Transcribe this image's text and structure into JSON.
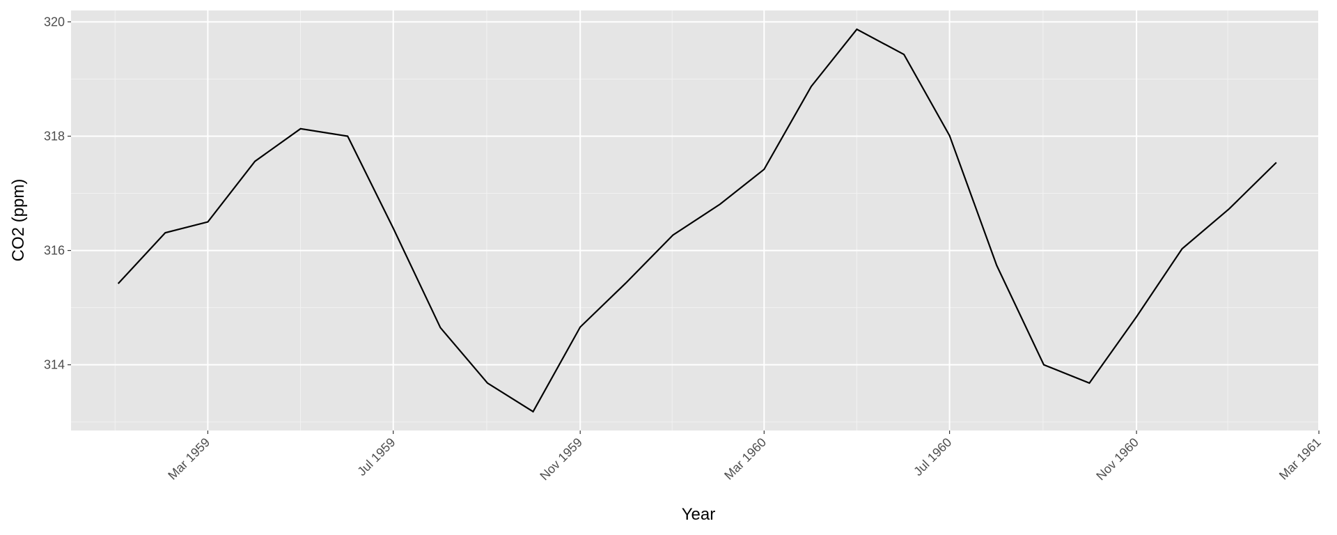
{
  "chart_data": {
    "type": "line",
    "x_label": "Year",
    "y_label": "CO2 (ppm)",
    "x": [
      "1959-01",
      "1959-02",
      "1959-03",
      "1959-04",
      "1959-05",
      "1959-06",
      "1959-07",
      "1959-08",
      "1959-09",
      "1959-10",
      "1959-11",
      "1959-12",
      "1960-01",
      "1960-02",
      "1960-03",
      "1960-04",
      "1960-05",
      "1960-06",
      "1960-07",
      "1960-08",
      "1960-09",
      "1960-10",
      "1960-11",
      "1960-12",
      "1961-01",
      "1961-02"
    ],
    "series": [
      {
        "color": "#000000",
        "values": [
          315.42,
          316.31,
          316.5,
          317.56,
          318.13,
          318.0,
          316.39,
          314.65,
          313.68,
          313.18,
          314.66,
          315.43,
          316.27,
          316.81,
          317.42,
          318.87,
          319.87,
          319.43,
          318.01,
          315.74,
          314.0,
          313.68,
          314.84,
          316.03,
          316.73,
          317.54
        ]
      }
    ],
    "xlim": [
      "1958-12",
      "1961-03"
    ],
    "xticks": [
      {
        "value": "1959-03",
        "label": "Mar 1959"
      },
      {
        "value": "1959-07",
        "label": "Jul 1959"
      },
      {
        "value": "1959-11",
        "label": "Nov 1959"
      },
      {
        "value": "1960-03",
        "label": "Mar 1960"
      },
      {
        "value": "1960-07",
        "label": "Jul 1960"
      },
      {
        "value": "1960-11",
        "label": "Nov 1960"
      },
      {
        "value": "1961-03",
        "label": "Mar 1961"
      }
    ],
    "ylim": [
      312.85,
      320.2
    ],
    "yticks": [
      314,
      316,
      318,
      320
    ],
    "grid": true
  }
}
